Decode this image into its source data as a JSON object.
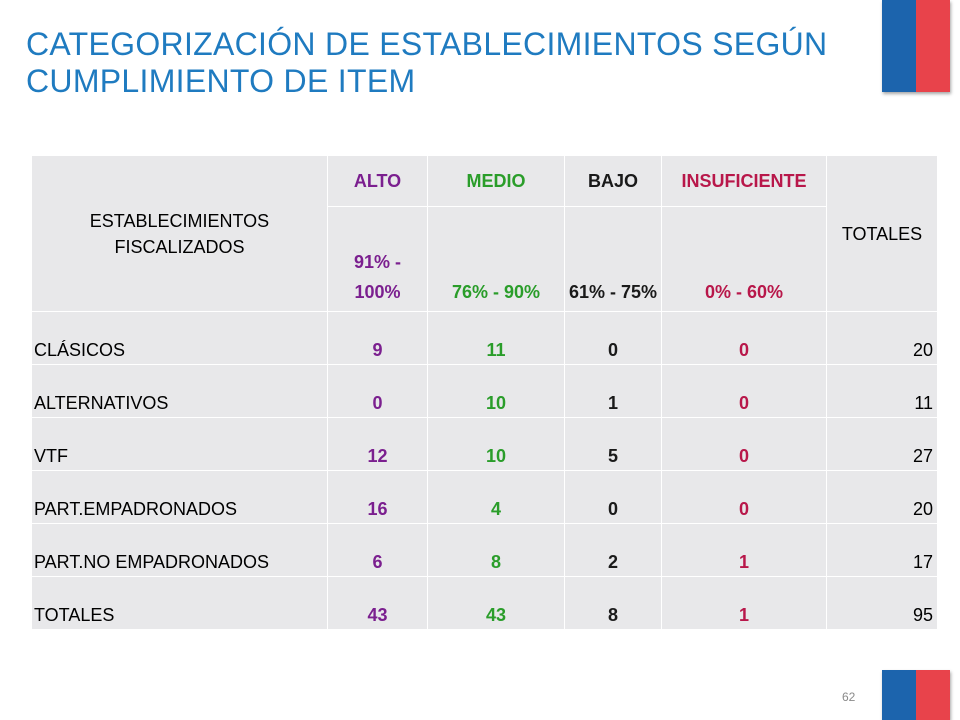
{
  "slide": {
    "title": "CATEGORIZACIÓN DE ESTABLECIMIENTOS SEGÚN CUMPLIMIENTO DE ITEM",
    "page_number": "62"
  },
  "colors": {
    "title": "#1f7bc0",
    "flag_blue": "#1c64ad",
    "flag_red": "#e8434b",
    "alto": "#7b1f8f",
    "medio": "#2a9d2a",
    "bajo": "#1a1a1a",
    "insuficiente": "#b8174a",
    "cell_bg": "#e8e8ea"
  },
  "table": {
    "row_header": "ESTABLECIMIENTOS FISCALIZADOS",
    "total_header": "TOTALES",
    "categories": [
      {
        "name": "ALTO",
        "range": "91% - 100%"
      },
      {
        "name": "MEDIO",
        "range": "76% - 90%"
      },
      {
        "name": "BAJO",
        "range": "61% - 75%"
      },
      {
        "name": "INSUFICIENTE",
        "range": "0% - 60%"
      }
    ],
    "rows": [
      {
        "label": "CLÁSICOS",
        "alto": "9",
        "medio": "11",
        "bajo": "0",
        "insuficiente": "0",
        "total": "20"
      },
      {
        "label": "ALTERNATIVOS",
        "alto": "0",
        "medio": "10",
        "bajo": "1",
        "insuficiente": "0",
        "total": "11"
      },
      {
        "label": "VTF",
        "alto": "12",
        "medio": "10",
        "bajo": "5",
        "insuficiente": "0",
        "total": "27"
      },
      {
        "label": "PART.EMPADRONADOS",
        "alto": "16",
        "medio": "4",
        "bajo": "0",
        "insuficiente": "0",
        "total": "20"
      },
      {
        "label": "PART.NO EMPADRONADOS",
        "alto": "6",
        "medio": "8",
        "bajo": "2",
        "insuficiente": "1",
        "total": "17"
      },
      {
        "label": "TOTALES",
        "alto": "43",
        "medio": "43",
        "bajo": "8",
        "insuficiente": "1",
        "total": "95"
      }
    ]
  }
}
